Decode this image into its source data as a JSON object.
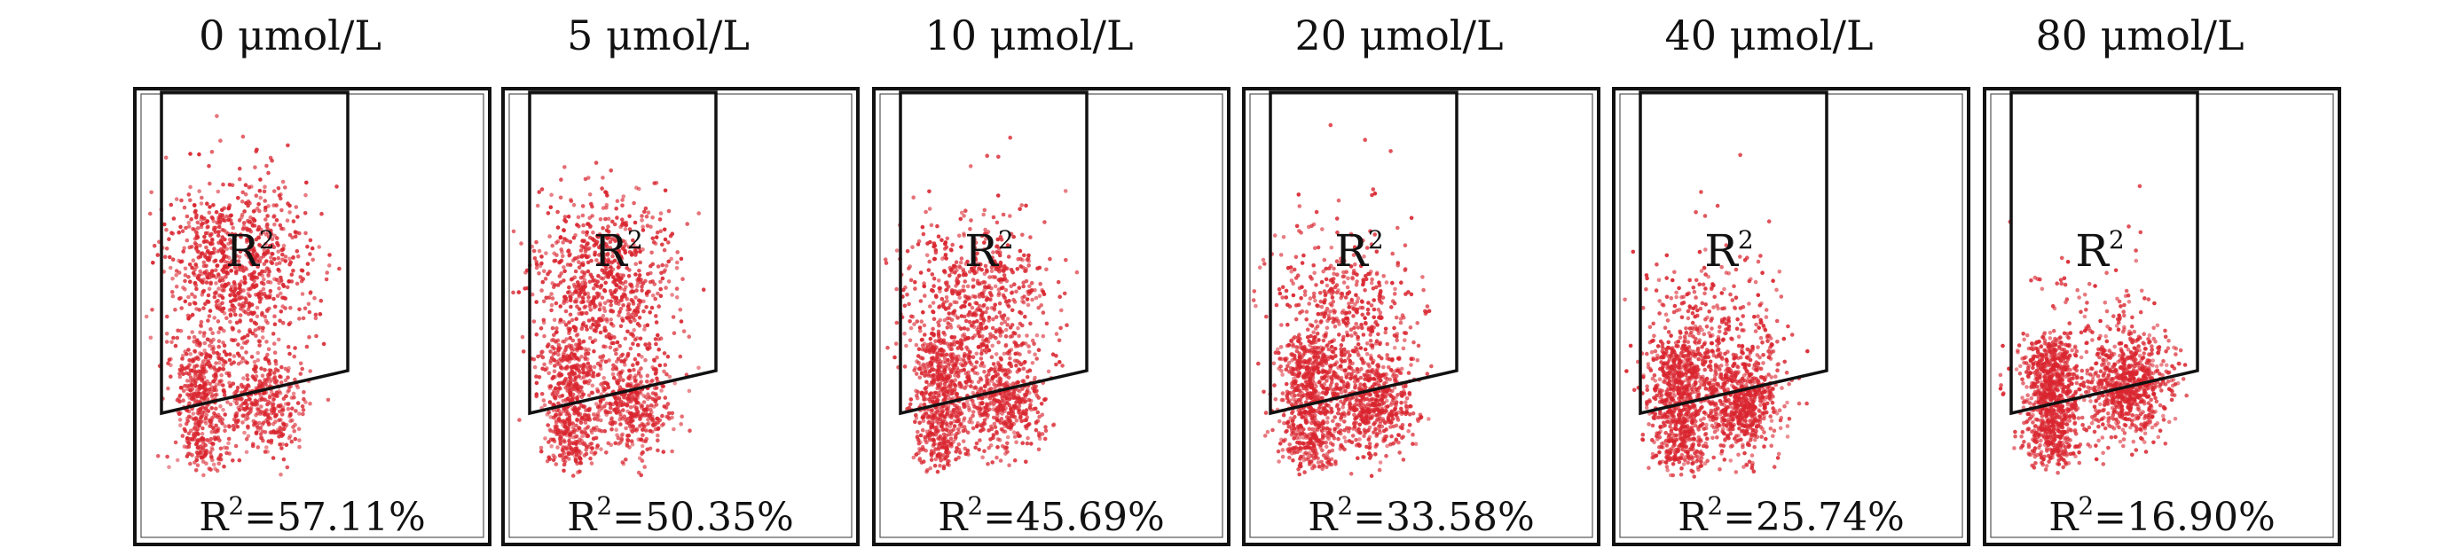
{
  "figure": {
    "gate_name": "R",
    "gate_superscript": "2",
    "dot_color": "#d9252f",
    "frame_color": "#111111",
    "panels": [
      {
        "concentration": "0 μmol/L",
        "result": "=57.11%",
        "percent": 57.11
      },
      {
        "concentration": "5 μmol/L",
        "result": "=50.35%",
        "percent": 50.35
      },
      {
        "concentration": "10 μmol/L",
        "result": "=45.69%",
        "percent": 45.69
      },
      {
        "concentration": "20 μmol/L",
        "result": "=33.58%",
        "percent": 33.58
      },
      {
        "concentration": "40 μmol/L",
        "result": "=25.74%",
        "percent": 25.74
      },
      {
        "concentration": "80 μmol/L",
        "result": "=16.90%",
        "percent": 16.9
      }
    ]
  }
}
